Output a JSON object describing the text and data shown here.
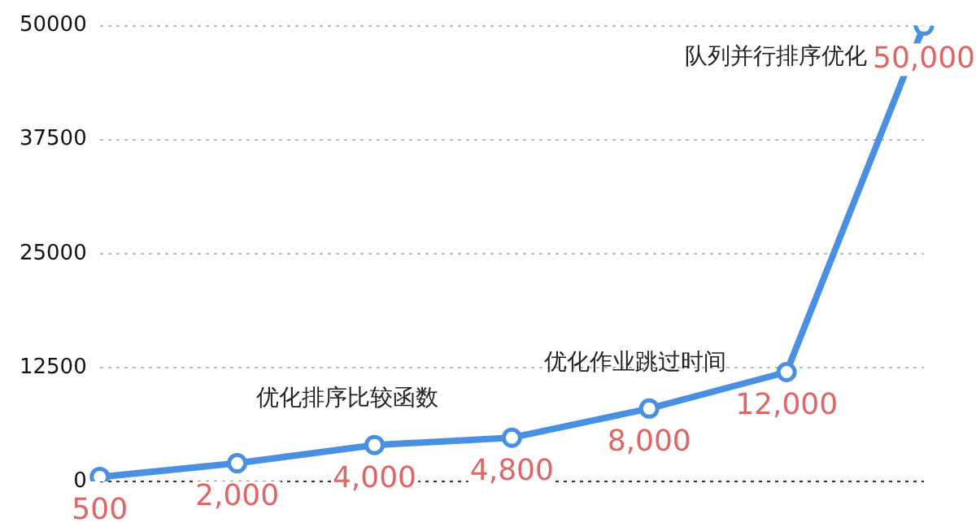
{
  "chart_data": {
    "type": "line",
    "categories": [
      null,
      null,
      null,
      null,
      null,
      null,
      null
    ],
    "series": [
      {
        "color": "#4a90e2",
        "values": [
          500,
          2000,
          4000,
          4800,
          8000,
          12000,
          50000
        ],
        "value_labels": [
          "500",
          "2,000",
          "4,000",
          "4,800",
          "8,000",
          "12,000",
          "50,000"
        ]
      }
    ],
    "ylim": [
      0,
      50000
    ],
    "yticks": [
      0,
      12500,
      25000,
      37500,
      50000
    ],
    "grid": "y",
    "legend": false,
    "marker": "circle",
    "line_style": "solid",
    "annotations": [
      "优化排序比较函数",
      "优化作业跳过时间",
      "队列并行排序优化"
    ]
  }
}
